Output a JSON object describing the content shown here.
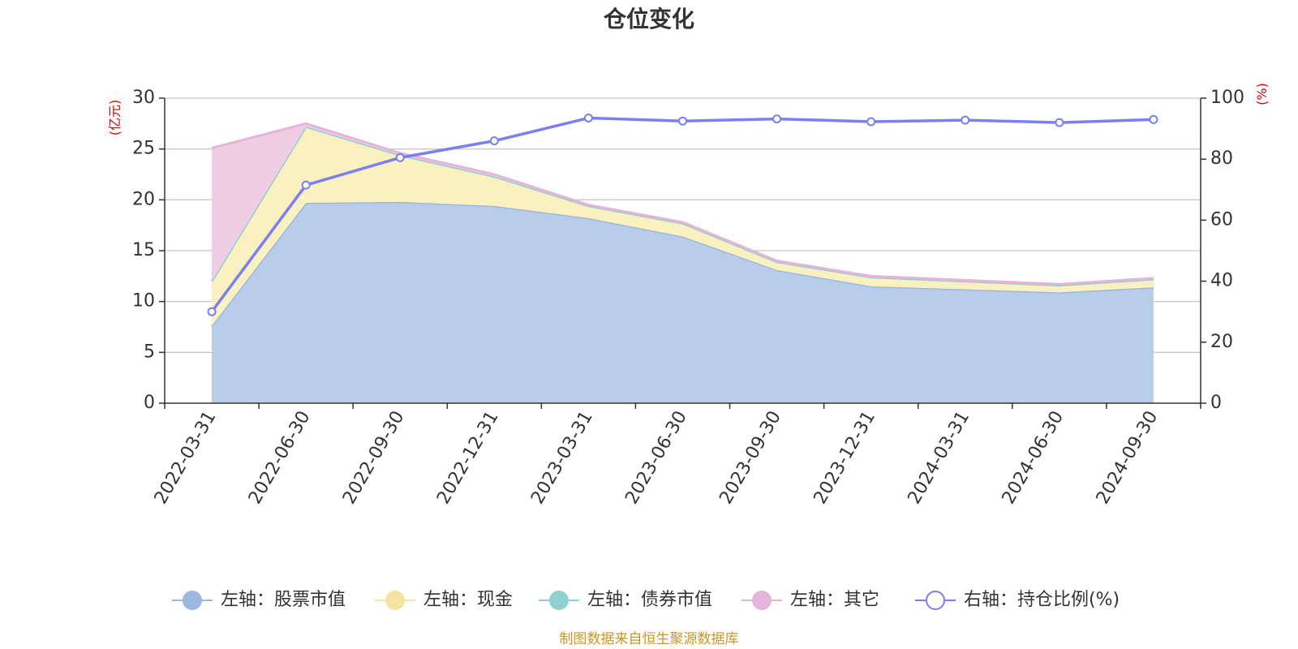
{
  "chart_data": {
    "type": "area",
    "title": "仓位变化",
    "categories": [
      "2022-03-31",
      "2022-06-30",
      "2022-09-30",
      "2022-12-31",
      "2023-03-31",
      "2023-06-30",
      "2023-09-30",
      "2023-12-31",
      "2024-03-31",
      "2024-06-30",
      "2024-09-30"
    ],
    "left_axis": {
      "unit_label": "(亿元)",
      "min": 0,
      "max": 30,
      "ticks": [
        0,
        5,
        10,
        15,
        20,
        25,
        30
      ]
    },
    "right_axis": {
      "unit_label": "(%)",
      "min": 0,
      "max": 100,
      "ticks": [
        0,
        20,
        40,
        60,
        80,
        100
      ]
    },
    "stacked": true,
    "series": [
      {
        "name": "左轴：股票市值",
        "axis": "left",
        "type": "area",
        "color": "#9cb8e0",
        "fill": "#b8cdea",
        "values": [
          7.6,
          19.7,
          19.8,
          19.4,
          18.2,
          16.4,
          13.1,
          11.5,
          11.2,
          10.9,
          11.4
        ]
      },
      {
        "name": "左轴：现金",
        "axis": "left",
        "type": "area",
        "color": "#f5e4a0",
        "fill": "#faf0c0",
        "values": [
          4.4,
          7.5,
          4.6,
          2.9,
          1.2,
          1.3,
          0.8,
          0.9,
          0.8,
          0.7,
          0.8
        ]
      },
      {
        "name": "左轴：债券市值",
        "axis": "left",
        "type": "area",
        "color": "#8fd0d0",
        "fill": "#b4e2e2",
        "values": [
          0,
          0,
          0,
          0,
          0,
          0,
          0,
          0,
          0,
          0,
          0
        ]
      },
      {
        "name": "左轴：其它",
        "axis": "left",
        "type": "area",
        "color": "#e6b4d8",
        "fill": "#efcde5",
        "values": [
          13.1,
          0.3,
          0.2,
          0.2,
          0.1,
          0.1,
          0.1,
          0.1,
          0.1,
          0.1,
          0.1
        ]
      },
      {
        "name": "右轴：持仓比例(%)",
        "axis": "right",
        "type": "line",
        "color": "#7b7ff0",
        "values": [
          30.0,
          71.5,
          80.5,
          86.0,
          93.5,
          92.5,
          93.2,
          92.3,
          92.8,
          92.0,
          93.0
        ]
      }
    ],
    "legend_position": "bottom-center",
    "grid": true,
    "source": "制图数据来自恒生聚源数据库"
  }
}
